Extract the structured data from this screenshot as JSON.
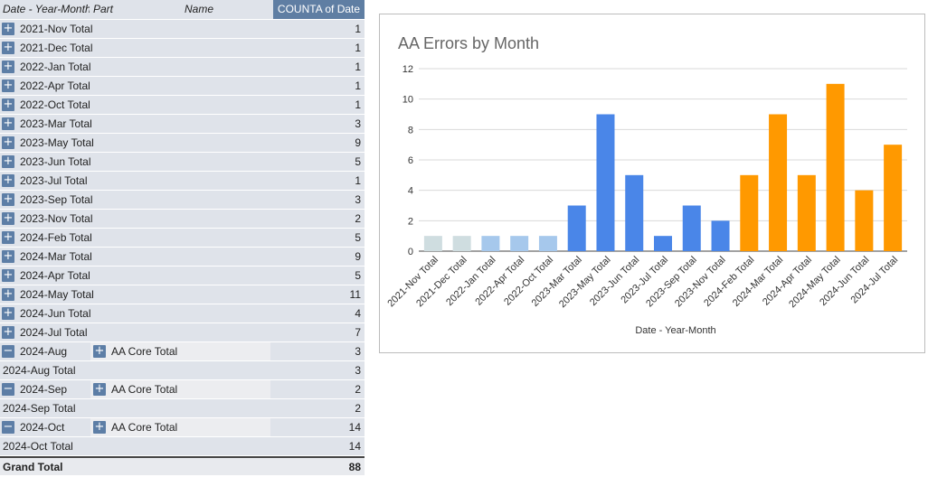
{
  "pivot": {
    "headers": {
      "date": "Date - Year-Month",
      "part": "Part",
      "name": "Name",
      "count": "COUNTA of Date"
    },
    "rows": [
      {
        "label": "2021-Nov Total",
        "value": "1"
      },
      {
        "label": "2021-Dec Total",
        "value": "1"
      },
      {
        "label": "2022-Jan Total",
        "value": "1"
      },
      {
        "label": "2022-Apr Total",
        "value": "1"
      },
      {
        "label": "2022-Oct Total",
        "value": "1"
      },
      {
        "label": "2023-Mar Total",
        "value": "3"
      },
      {
        "label": "2023-May Total",
        "value": "9"
      },
      {
        "label": "2023-Jun Total",
        "value": "5"
      },
      {
        "label": "2023-Jul Total",
        "value": "1"
      },
      {
        "label": "2023-Sep Total",
        "value": "3"
      },
      {
        "label": "2023-Nov Total",
        "value": "2"
      },
      {
        "label": "2024-Feb Total",
        "value": "5"
      },
      {
        "label": "2024-Mar Total",
        "value": "9"
      },
      {
        "label": "2024-Apr Total",
        "value": "5"
      },
      {
        "label": "2024-May Total",
        "value": "11"
      },
      {
        "label": "2024-Jun Total",
        "value": "4"
      },
      {
        "label": "2024-Jul Total",
        "value": "7"
      }
    ],
    "expanded": [
      {
        "month": "2024-Aug",
        "part": "AA Core Total",
        "value": "3",
        "total_label": "2024-Aug Total",
        "total_value": "3"
      },
      {
        "month": "2024-Sep",
        "part": "AA Core Total",
        "value": "2",
        "total_label": "2024-Sep Total",
        "total_value": "2"
      },
      {
        "month": "2024-Oct",
        "part": "AA Core Total",
        "value": "14",
        "total_label": "2024-Oct Total",
        "total_value": "14"
      }
    ],
    "grand_total": {
      "label": "Grand Total",
      "value": "88"
    }
  },
  "chart_data": {
    "type": "bar",
    "title": "AA Errors by Month",
    "xlabel": "Date - Year-Month",
    "ylabel": "",
    "ylim": [
      0,
      12
    ],
    "yticks": [
      0,
      2,
      4,
      6,
      8,
      10,
      12
    ],
    "grid": true,
    "legend": "none",
    "categories": [
      "2021-Nov Total",
      "2021-Dec Total",
      "2022-Jan Total",
      "2022-Apr Total",
      "2022-Oct Total",
      "2023-Mar Total",
      "2023-May Total",
      "2023-Jun Total",
      "2023-Jul Total",
      "2023-Sep Total",
      "2023-Nov Total",
      "2024-Feb Total",
      "2024-Mar Total",
      "2024-Apr Total",
      "2024-May Total",
      "2024-Jun Total",
      "2024-Jul Total"
    ],
    "values": [
      1,
      1,
      1,
      1,
      1,
      3,
      9,
      5,
      1,
      3,
      2,
      5,
      9,
      5,
      11,
      4,
      7
    ],
    "bar_colors": [
      "#cfdde0",
      "#cfdde0",
      "#a6c8ec",
      "#a6c8ec",
      "#a6c8ec",
      "#4a86e8",
      "#4a86e8",
      "#4a86e8",
      "#4a86e8",
      "#4a86e8",
      "#4a86e8",
      "#ff9900",
      "#ff9900",
      "#ff9900",
      "#ff9900",
      "#ff9900",
      "#ff9900"
    ]
  },
  "colors": {
    "pivot_header_accent": "#5f7ea3",
    "pivot_row_bg": "#dfe3ea",
    "expand_button": "#5d7ea6"
  }
}
